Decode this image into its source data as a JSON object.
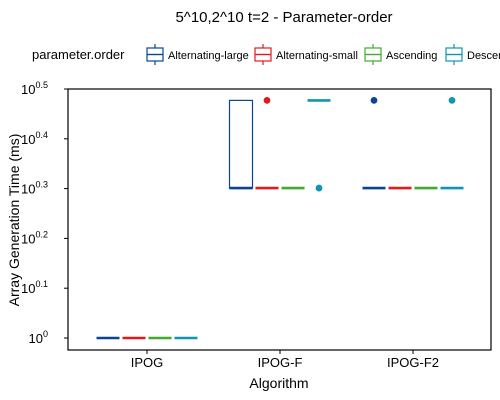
{
  "chart_data": {
    "type": "boxplot",
    "title": "5^10,2^10 t=2 - Parameter-order",
    "xlabel": "Algorithm",
    "ylabel": "Array Generation Time (ms)",
    "y_scale": "log10",
    "ylim_exponent": [
      0,
      0.5
    ],
    "y_ticks": [
      {
        "exp": 0,
        "base": "10",
        "sup": "0"
      },
      {
        "exp": 0.1,
        "base": "10",
        "sup": "0.1"
      },
      {
        "exp": 0.2,
        "base": "10",
        "sup": "0.2"
      },
      {
        "exp": 0.3,
        "base": "10",
        "sup": "0.3"
      },
      {
        "exp": 0.4,
        "base": "10",
        "sup": "0.4"
      },
      {
        "exp": 0.5,
        "base": "10",
        "sup": "0.5"
      }
    ],
    "categories": [
      "IPOG",
      "IPOG-F",
      "IPOG-F2"
    ],
    "legend": {
      "title": "parameter.order",
      "position": "top",
      "entries": [
        "Alternating-large",
        "Alternating-small",
        "Ascending",
        "Descending"
      ]
    },
    "series": [
      {
        "name": "Alternating-large",
        "color": "#084594",
        "boxes": [
          {
            "category": "IPOG",
            "q1": 1,
            "median": 1,
            "q3": 1,
            "whisker_low": 1,
            "whisker_high": 1,
            "outliers": []
          },
          {
            "category": "IPOG-F",
            "q1": 2,
            "median": 2,
            "q3": 3,
            "whisker_low": 2,
            "whisker_high": 3,
            "outliers": []
          },
          {
            "category": "IPOG-F2",
            "q1": 2,
            "median": 2,
            "q3": 2,
            "whisker_low": 2,
            "whisker_high": 2,
            "outliers": [
              3
            ]
          }
        ]
      },
      {
        "name": "Alternating-small",
        "color": "#e31a1c",
        "boxes": [
          {
            "category": "IPOG",
            "q1": 1,
            "median": 1,
            "q3": 1,
            "whisker_low": 1,
            "whisker_high": 1,
            "outliers": []
          },
          {
            "category": "IPOG-F",
            "q1": 2,
            "median": 2,
            "q3": 2,
            "whisker_low": 2,
            "whisker_high": 2,
            "outliers": [
              3
            ]
          },
          {
            "category": "IPOG-F2",
            "q1": 2,
            "median": 2,
            "q3": 2,
            "whisker_low": 2,
            "whisker_high": 2,
            "outliers": []
          }
        ]
      },
      {
        "name": "Ascending",
        "color": "#41ab2e",
        "boxes": [
          {
            "category": "IPOG",
            "q1": 1,
            "median": 1,
            "q3": 1,
            "whisker_low": 1,
            "whisker_high": 1,
            "outliers": []
          },
          {
            "category": "IPOG-F",
            "q1": 2,
            "median": 2,
            "q3": 2,
            "whisker_low": 2,
            "whisker_high": 2,
            "outliers": []
          },
          {
            "category": "IPOG-F2",
            "q1": 2,
            "median": 2,
            "q3": 2,
            "whisker_low": 2,
            "whisker_high": 2,
            "outliers": []
          }
        ]
      },
      {
        "name": "Descending",
        "color": "#0e96b4",
        "boxes": [
          {
            "category": "IPOG",
            "q1": 1,
            "median": 1,
            "q3": 1,
            "whisker_low": 1,
            "whisker_high": 1,
            "outliers": []
          },
          {
            "category": "IPOG-F",
            "q1": 3,
            "median": 3,
            "q3": 3,
            "whisker_low": 3,
            "whisker_high": 3,
            "outliers": [
              2
            ]
          },
          {
            "category": "IPOG-F2",
            "q1": 2,
            "median": 2,
            "q3": 2,
            "whisker_low": 2,
            "whisker_high": 2,
            "outliers": [
              3
            ]
          }
        ]
      }
    ],
    "grid": false
  }
}
